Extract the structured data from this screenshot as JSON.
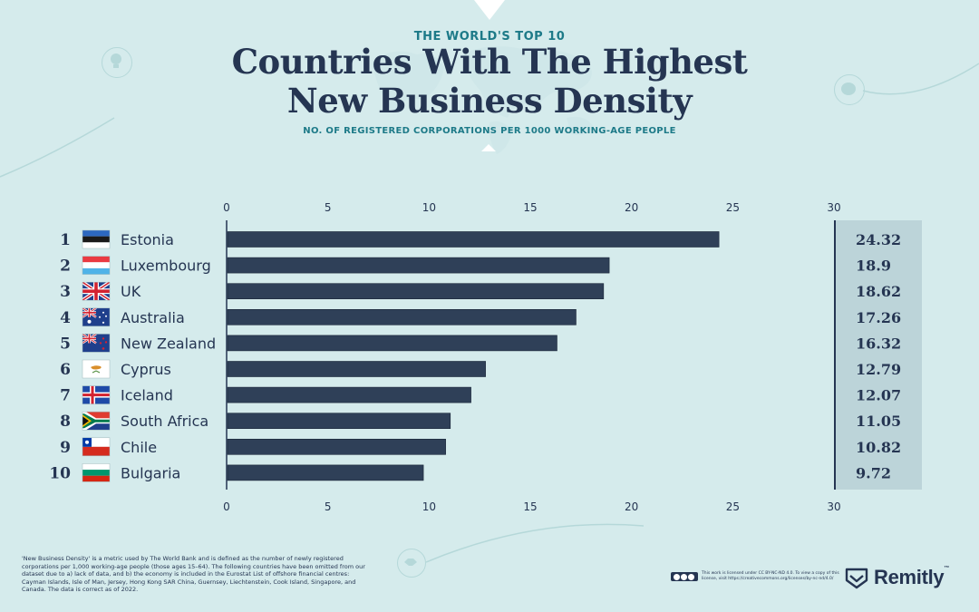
{
  "header": {
    "kicker": "THE WORLD'S TOP 10",
    "title_line1": "Countries With The Highest",
    "title_line2": "New Business Density",
    "subtitle": "NO. OF REGISTERED CORPORATIONS PER 1000 WORKING-AGE PEOPLE"
  },
  "chart_data": {
    "type": "bar",
    "orientation": "horizontal",
    "title": "Countries With The Highest New Business Density",
    "ylabel": "",
    "xlabel": "",
    "categories": [
      "Estonia",
      "Luxembourg",
      "UK",
      "Australia",
      "New Zealand",
      "Cyprus",
      "Iceland",
      "South Africa",
      "Chile",
      "Bulgaria"
    ],
    "ranks": [
      "1",
      "2",
      "3",
      "4",
      "5",
      "6",
      "7",
      "8",
      "9",
      "10"
    ],
    "values": [
      24.32,
      18.9,
      18.62,
      17.26,
      16.32,
      12.79,
      12.07,
      11.05,
      10.82,
      9.72
    ],
    "value_labels": [
      "24.32",
      "18.9",
      "18.62",
      "17.26",
      "16.32",
      "12.79",
      "12.07",
      "11.05",
      "10.82",
      "9.72"
    ],
    "xlim": [
      0,
      30
    ],
    "ticks": [
      0,
      5,
      10,
      15,
      20,
      25,
      30
    ],
    "tick_labels": [
      "0",
      "5",
      "10",
      "15",
      "20",
      "25",
      "30"
    ],
    "grid": false,
    "bar_color": "#2f4058"
  },
  "flags": [
    "estonia-flag-icon",
    "luxembourg-flag-icon",
    "uk-flag-icon",
    "australia-flag-icon",
    "new-zealand-flag-icon",
    "cyprus-flag-icon",
    "iceland-flag-icon",
    "south-africa-flag-icon",
    "chile-flag-icon",
    "bulgaria-flag-icon"
  ],
  "footnote": "'New Business Density' is a metric used by The World Bank and is defined as the number of newly registered corporations per 1,000 working-age people (those ages 15–64). The following countries have been omitted from our dataset due to a) lack of data, and b) the economy is included in the Eurostat List of offshore financial centres: Cayman Islands, Isle of Man, Jersey, Hong Kong SAR China, Guernsey, Liechtenstein, Cook Island, Singapore, and Canada. The data is correct as of 2022.",
  "license_text": "This work is licensed under CC BY-NC-ND 4.0. To view a copy of this license, visit https://creativecommons.org/licenses/by-nc-nd/4.0/",
  "brand": {
    "name": "Remitly",
    "trademark": "™"
  },
  "colors": {
    "background": "#d5ebec",
    "navy": "#253552",
    "teal": "#1d7a88",
    "panel": "#bcd4d9"
  }
}
